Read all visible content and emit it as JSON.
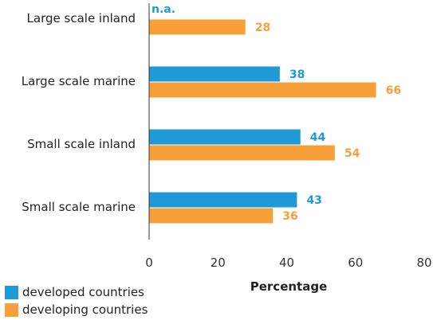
{
  "chart_data": {
    "type": "bar",
    "orientation": "horizontal",
    "categories": [
      "Large scale inland",
      "Large scale marine",
      "Small scale inland",
      "Small scale marine"
    ],
    "series": [
      {
        "name": "developed countries",
        "color": "#1f9ad6",
        "values": [
          null,
          38,
          44,
          43
        ],
        "labels": [
          "n.a.",
          "38",
          "44",
          "43"
        ]
      },
      {
        "name": "developing countries",
        "color": "#f7a03a",
        "values": [
          28,
          66,
          54,
          36
        ],
        "labels": [
          "28",
          "66",
          "54",
          "36"
        ]
      }
    ],
    "xlabel": "Percentage",
    "xlim": [
      0,
      80
    ],
    "xticks": [
      "0",
      "20",
      "40",
      "60",
      "80"
    ],
    "grid": false,
    "legend_position": "bottom-left"
  }
}
